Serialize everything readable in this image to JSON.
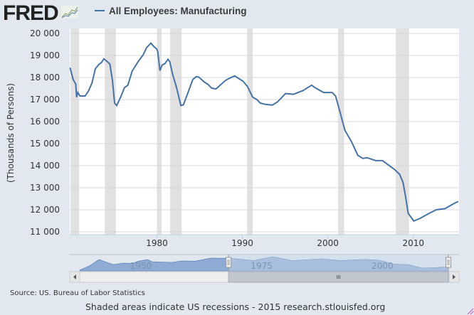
{
  "header": {
    "logo": "FRED",
    "legend_label": "All Employees: Manufacturing"
  },
  "colors": {
    "series": "#4572a7",
    "recession": "#e1e1e1",
    "grid": "#d8d8d8",
    "background": "#e1e8ef"
  },
  "chart_data": {
    "type": "line",
    "title": "All Employees: Manufacturing",
    "xlabel": "",
    "ylabel": "(Thousands of Persons)",
    "xlim": [
      1969.8,
      2015.35
    ],
    "ylim": [
      11000,
      20000
    ],
    "yticks": [
      11000,
      12000,
      13000,
      14000,
      15000,
      16000,
      17000,
      18000,
      19000,
      20000
    ],
    "ytick_labels": [
      "11 000",
      "12 000",
      "13 000",
      "14 000",
      "15 000",
      "16 000",
      "17 000",
      "18 000",
      "19 000",
      "20 000"
    ],
    "xticks": [
      1980,
      1990,
      2000,
      2010
    ],
    "xtick_labels": [
      "1980",
      "1990",
      "2000",
      "2010"
    ],
    "grid": true,
    "legend": "top-left",
    "recessions": [
      [
        1969.9,
        1970.9
      ],
      [
        1973.9,
        1975.2
      ],
      [
        1980.0,
        1980.55
      ],
      [
        1981.55,
        1982.9
      ],
      [
        1990.55,
        1991.2
      ],
      [
        2001.2,
        2001.9
      ],
      [
        2007.95,
        2009.5
      ]
    ],
    "series": [
      {
        "name": "All Employees: Manufacturing",
        "x": [
          1969.83,
          1970.2,
          1970.5,
          1970.6,
          1970.75,
          1971.0,
          1971.6,
          1972.0,
          1972.4,
          1972.8,
          1973.25,
          1973.5,
          1973.8,
          1974.2,
          1974.5,
          1974.8,
          1975.05,
          1975.3,
          1975.75,
          1976.2,
          1976.6,
          1977.1,
          1977.8,
          1978.4,
          1978.8,
          1979.3,
          1979.6,
          1980.0,
          1980.1,
          1980.35,
          1980.6,
          1980.95,
          1981.3,
          1981.5,
          1981.85,
          1982.3,
          1982.8,
          1983.1,
          1983.7,
          1984.2,
          1984.6,
          1984.9,
          1985.5,
          1986.0,
          1986.4,
          1986.9,
          1987.4,
          1988.0,
          1988.5,
          1989.1,
          1989.5,
          1990.05,
          1990.6,
          1991.2,
          1991.7,
          1992.1,
          1992.7,
          1993.5,
          1994.1,
          1995.05,
          1996.0,
          1997.1,
          1998.1,
          1998.5,
          1999.5,
          2000.5,
          2000.9,
          2001.4,
          2002.0,
          2002.8,
          2003.5,
          2004.1,
          2004.6,
          2005.6,
          2006.4,
          2006.85,
          2007.8,
          2008.4,
          2008.8,
          2009.1,
          2009.4,
          2010.05,
          2010.75,
          2011.85,
          2012.7,
          2013.7,
          2014.6,
          2015.25
        ],
        "values": [
          18450,
          17910,
          17700,
          17110,
          17320,
          17160,
          17160,
          17390,
          17750,
          18400,
          18610,
          18670,
          18850,
          18720,
          18610,
          17860,
          16840,
          16730,
          17110,
          17540,
          17650,
          18290,
          18720,
          19040,
          19360,
          19560,
          19420,
          19280,
          19150,
          18310,
          18560,
          18640,
          18830,
          18720,
          18130,
          17540,
          16730,
          16760,
          17380,
          17910,
          18040,
          18020,
          17810,
          17680,
          17520,
          17480,
          17650,
          17860,
          17970,
          18070,
          17970,
          17840,
          17590,
          17110,
          17000,
          16840,
          16780,
          16750,
          16890,
          17270,
          17240,
          17410,
          17650,
          17540,
          17320,
          17320,
          17160,
          16460,
          15600,
          15060,
          14470,
          14330,
          14360,
          14230,
          14230,
          14100,
          13830,
          13610,
          13240,
          12590,
          11840,
          11490,
          11600,
          11840,
          12000,
          12050,
          12250,
          12380
        ]
      }
    ],
    "navigator": {
      "xlim": [
        1939,
        2015.3
      ],
      "selected": [
        1969.8,
        2015.3
      ],
      "tick_labels": [
        "1950",
        "1975",
        "2000"
      ],
      "ticks": [
        1950,
        1975,
        2000
      ],
      "x": [
        1939,
        1941,
        1943,
        1945,
        1946,
        1948,
        1950,
        1951,
        1953,
        1954,
        1958,
        1960,
        1963,
        1966,
        1970,
        1975,
        1979,
        1983,
        1989,
        1993,
        1998,
        2001,
        2004,
        2007,
        2010,
        2015.3
      ],
      "values": [
        10000,
        13000,
        17500,
        15000,
        14000,
        15000,
        14800,
        16200,
        17500,
        16000,
        15500,
        16500,
        16400,
        18500,
        18400,
        16800,
        19500,
        16700,
        18000,
        16800,
        17600,
        17000,
        14300,
        13900,
        11500,
        12300
      ]
    }
  },
  "footer": {
    "source": "Source: US. Bureau of Labor Statistics",
    "credit": "Shaded areas indicate US recessions - 2015 research.stlouisfed.org"
  }
}
